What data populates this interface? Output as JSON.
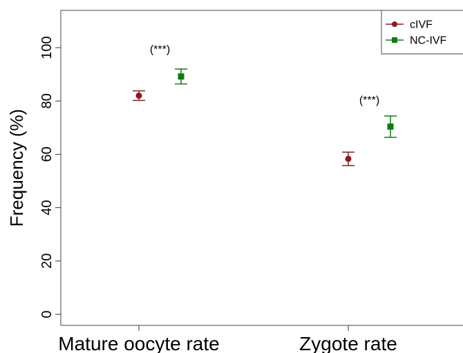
{
  "chart_data": {
    "type": "scatter",
    "ylabel": "Frequency (%)",
    "xlabel": "",
    "categories": [
      "Mature oocyte rate",
      "Zygote rate"
    ],
    "ylim": [
      -4,
      115
    ],
    "yticks": [
      0,
      20,
      40,
      60,
      80,
      100
    ],
    "grid": false,
    "legend_position": "top-right",
    "series": [
      {
        "name": "cIVF",
        "color": "#8b1a1a",
        "marker": "circle",
        "values": [
          82,
          58.3
        ],
        "errors": [
          1.8,
          2.5
        ]
      },
      {
        "name": "NC-IVF",
        "color": "#117a11",
        "marker": "square",
        "values": [
          89.2,
          70.4
        ],
        "errors": [
          2.8,
          4
        ]
      }
    ],
    "annotations": [
      {
        "text": "(***)",
        "category": 0,
        "y": 98
      },
      {
        "text": "(***)",
        "category": 1,
        "y": 79
      }
    ]
  }
}
